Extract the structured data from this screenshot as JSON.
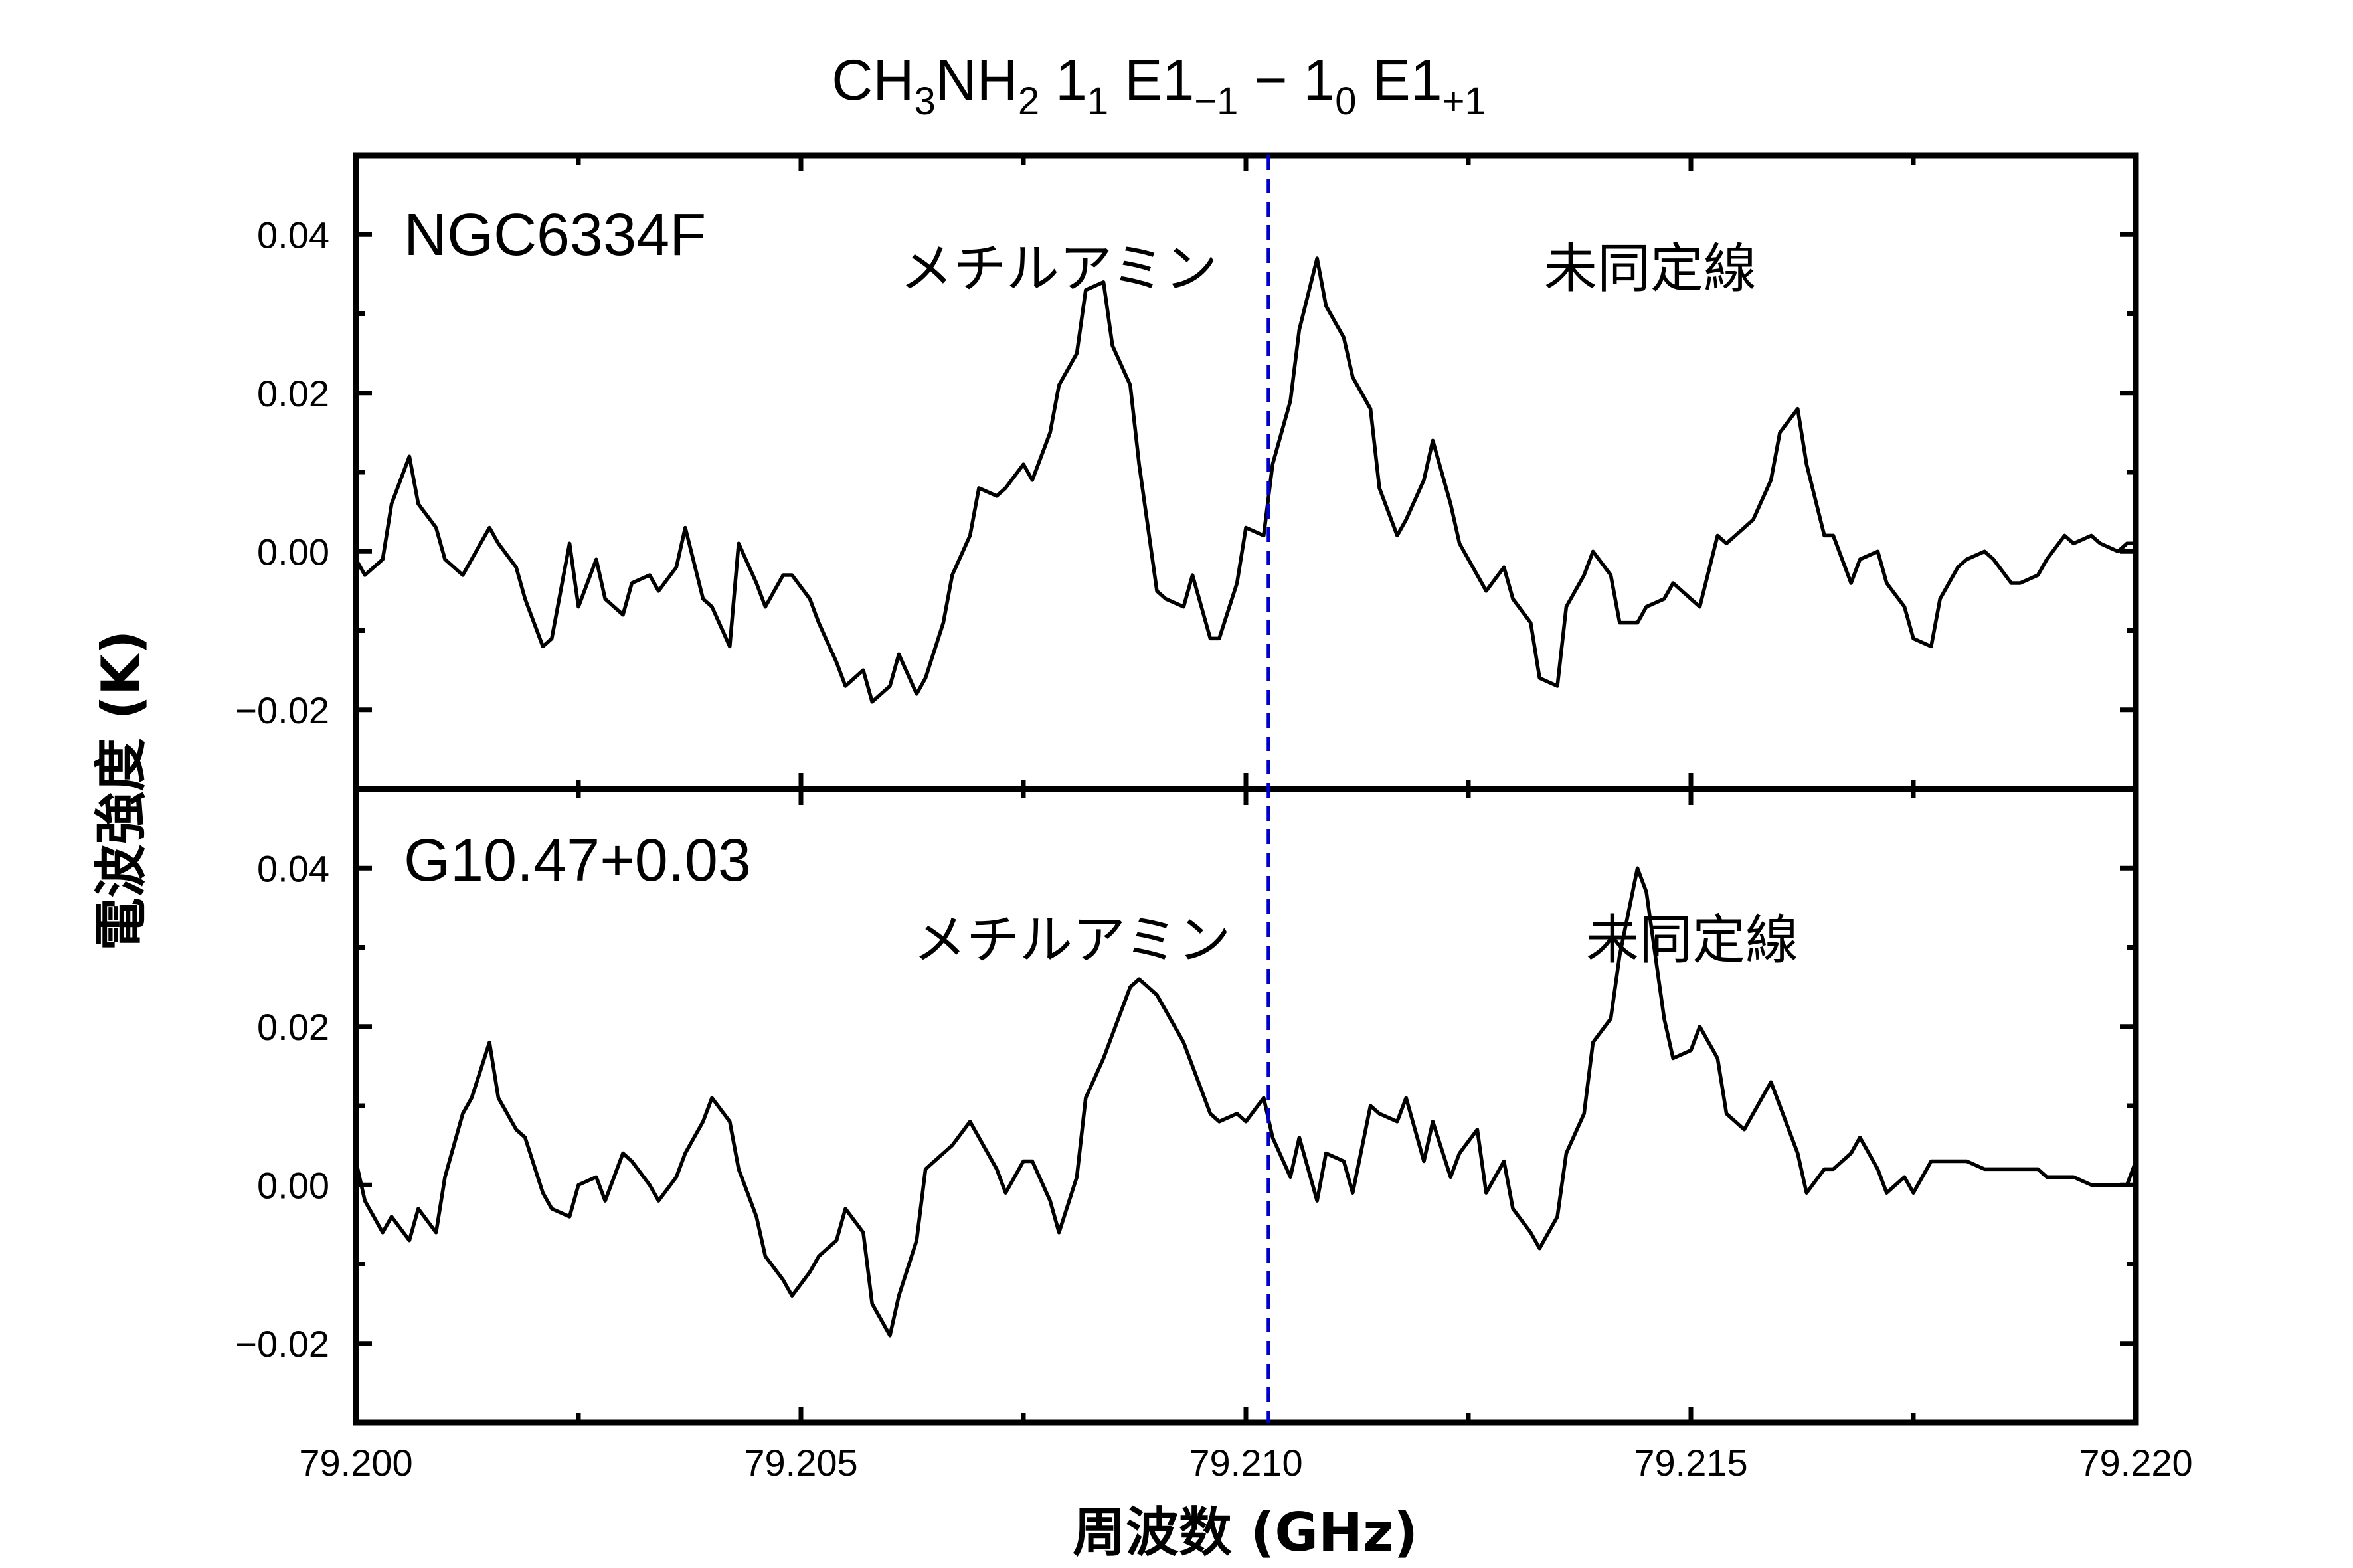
{
  "colors": {
    "marker": "#0000cc",
    "line": "#000000"
  },
  "chart_data": {
    "type": "line",
    "title": {
      "base": "CH",
      "s1": "3",
      "mid": "NH",
      "s2": "2",
      "sp1": " 1",
      "s3": "1",
      "sp2": " E1",
      "s4": "−1",
      "dash": " − 1",
      "s5": "0",
      "sp3": " E1",
      "s6": "+1"
    },
    "xlabel": "周波数 (GHz)",
    "ylabel": "電波強度 (K)",
    "xlim": [
      79.2,
      79.22
    ],
    "xticks": [
      "79.200",
      "79.205",
      "79.210",
      "79.215",
      "79.220"
    ],
    "marker_x": 79.21,
    "panels": [
      {
        "name": "NGC6334F",
        "ylim": [
          -0.03,
          0.05
        ],
        "yticks": [
          "0.04",
          "0.02",
          "0.00",
          "−0.02"
        ],
        "annotations": [
          "メチルアミン",
          "未同定線"
        ],
        "series": [
          {
            "x": [
              79.2,
              79.2001,
              79.2003,
              79.2004,
              79.2006,
              79.2007,
              79.2009,
              79.201,
              79.2012,
              79.2013,
              79.2015,
              79.2016,
              79.2018,
              79.2019,
              79.2021,
              79.2022,
              79.2024,
              79.2025,
              79.2027,
              79.2028,
              79.203,
              79.2031,
              79.2033,
              79.2034,
              79.2036,
              79.2037,
              79.2039,
              79.204,
              79.2042,
              79.2043,
              79.2045,
              79.2046,
              79.2048,
              79.2049,
              79.2051,
              79.2052,
              79.2054,
              79.2055,
              79.2057,
              79.2058,
              79.206,
              79.2061,
              79.2063,
              79.2064,
              79.2066,
              79.2067,
              79.2069,
              79.207,
              79.2072,
              79.2073,
              79.2075,
              79.2076,
              79.2078,
              79.2079,
              79.2081,
              79.2082,
              79.2084,
              79.2085,
              79.2087,
              79.2088,
              79.209,
              79.2091,
              79.2093,
              79.2094,
              79.2096,
              79.2097,
              79.2099,
              79.21,
              79.2102,
              79.2103,
              79.2105,
              79.2106,
              79.2108,
              79.2109,
              79.2111,
              79.2112,
              79.2114,
              79.2115,
              79.2117,
              79.2118,
              79.212,
              79.2121,
              79.2123,
              79.2124,
              79.2126,
              79.2127,
              79.2129,
              79.213,
              79.2132,
              79.2133,
              79.2135,
              79.2136,
              79.2138,
              79.2139,
              79.2141,
              79.2142,
              79.2144,
              79.2145,
              79.2147,
              79.2148,
              79.215,
              79.2151,
              79.2153,
              79.2154,
              79.2156,
              79.2157,
              79.2159,
              79.216,
              79.2162,
              79.2163,
              79.2165,
              79.2166,
              79.2168,
              79.2169,
              79.2171,
              79.2172,
              79.2174,
              79.2175,
              79.2177,
              79.2178,
              79.218,
              79.2181,
              79.2183,
              79.2184,
              79.2186,
              79.2187,
              79.2189,
              79.219,
              79.2192,
              79.2193,
              79.2195,
              79.2196,
              79.2198,
              79.2199,
              79.22
            ],
            "y": [
              -0.001,
              -0.003,
              -0.001,
              0.006,
              0.012,
              0.006,
              0.003,
              -0.001,
              -0.003,
              -0.001,
              0.003,
              0.001,
              -0.002,
              -0.006,
              -0.012,
              -0.011,
              0.001,
              -0.007,
              -0.001,
              -0.006,
              -0.008,
              -0.004,
              -0.003,
              -0.005,
              -0.002,
              0.003,
              -0.006,
              -0.007,
              -0.012,
              0.001,
              -0.004,
              -0.007,
              -0.003,
              -0.003,
              -0.006,
              -0.009,
              -0.014,
              -0.017,
              -0.015,
              -0.019,
              -0.017,
              -0.013,
              -0.018,
              -0.016,
              -0.009,
              -0.003,
              0.002,
              0.008,
              0.007,
              0.008,
              0.011,
              0.009,
              0.015,
              0.021,
              0.025,
              0.033,
              0.034,
              0.026,
              0.021,
              0.011,
              -0.005,
              -0.006,
              -0.007,
              -0.003,
              -0.011,
              -0.011,
              -0.004,
              0.003,
              0.002,
              0.011,
              0.019,
              0.028,
              0.037,
              0.031,
              0.027,
              0.022,
              0.018,
              0.008,
              0.002,
              0.004,
              0.009,
              0.014,
              0.006,
              0.001,
              -0.003,
              -0.005,
              -0.002,
              -0.006,
              -0.009,
              -0.016,
              -0.017,
              -0.007,
              -0.003,
              0.0,
              -0.003,
              -0.009,
              -0.009,
              -0.007,
              -0.006,
              -0.004,
              -0.006,
              -0.007,
              0.002,
              0.001,
              0.003,
              0.004,
              0.009,
              0.015,
              0.018,
              0.011,
              0.002,
              0.002,
              -0.004,
              -0.001,
              0.0,
              -0.004,
              -0.007,
              -0.011,
              -0.012,
              -0.006,
              -0.002,
              -0.001,
              0.0,
              -0.001,
              -0.004,
              -0.004,
              -0.003,
              -0.001,
              0.002,
              0.001,
              0.002,
              0.001,
              0.0,
              0.001,
              0.001
            ]
          }
        ]
      },
      {
        "name": "G10.47+0.03",
        "ylim": [
          -0.03,
          0.05
        ],
        "yticks": [
          "0.04",
          "0.02",
          "0.00",
          "−0.02"
        ],
        "annotations": [
          "メチルアミン",
          "未同定線"
        ],
        "series": [
          {
            "x": [
              79.2,
              79.2001,
              79.2003,
              79.2004,
              79.2006,
              79.2007,
              79.2009,
              79.201,
              79.2012,
              79.2013,
              79.2015,
              79.2016,
              79.2018,
              79.2019,
              79.2021,
              79.2022,
              79.2024,
              79.2025,
              79.2027,
              79.2028,
              79.203,
              79.2031,
              79.2033,
              79.2034,
              79.2036,
              79.2037,
              79.2039,
              79.204,
              79.2042,
              79.2043,
              79.2045,
              79.2046,
              79.2048,
              79.2049,
              79.2051,
              79.2052,
              79.2054,
              79.2055,
              79.2057,
              79.2058,
              79.206,
              79.2061,
              79.2063,
              79.2064,
              79.2066,
              79.2067,
              79.2069,
              79.207,
              79.2072,
              79.2073,
              79.2075,
              79.2076,
              79.2078,
              79.2079,
              79.2081,
              79.2082,
              79.2084,
              79.2085,
              79.2087,
              79.2088,
              79.209,
              79.2091,
              79.2093,
              79.2094,
              79.2096,
              79.2097,
              79.2099,
              79.21,
              79.2102,
              79.2103,
              79.2105,
              79.2106,
              79.2108,
              79.2109,
              79.2111,
              79.2112,
              79.2114,
              79.2115,
              79.2117,
              79.2118,
              79.212,
              79.2121,
              79.2123,
              79.2124,
              79.2126,
              79.2127,
              79.2129,
              79.213,
              79.2132,
              79.2133,
              79.2135,
              79.2136,
              79.2138,
              79.2139,
              79.2141,
              79.2142,
              79.2144,
              79.2145,
              79.2147,
              79.2148,
              79.215,
              79.2151,
              79.2153,
              79.2154,
              79.2156,
              79.2157,
              79.2159,
              79.216,
              79.2162,
              79.2163,
              79.2165,
              79.2166,
              79.2168,
              79.2169,
              79.2171,
              79.2172,
              79.2174,
              79.2175,
              79.2177,
              79.2178,
              79.218,
              79.2181,
              79.2183,
              79.2184,
              79.2186,
              79.2187,
              79.2189,
              79.219,
              79.2192,
              79.2193,
              79.2195,
              79.2196,
              79.2198,
              79.2199,
              79.22
            ],
            "y": [
              0.003,
              -0.002,
              -0.006,
              -0.004,
              -0.007,
              -0.003,
              -0.006,
              0.001,
              0.009,
              0.011,
              0.018,
              0.011,
              0.007,
              0.006,
              -0.001,
              -0.003,
              -0.004,
              0.0,
              0.001,
              -0.002,
              0.004,
              0.003,
              0.0,
              -0.002,
              0.001,
              0.004,
              0.008,
              0.011,
              0.008,
              0.002,
              -0.004,
              -0.009,
              -0.012,
              -0.014,
              -0.011,
              -0.009,
              -0.007,
              -0.003,
              -0.006,
              -0.015,
              -0.019,
              -0.014,
              -0.007,
              0.002,
              0.004,
              0.005,
              0.008,
              0.006,
              0.002,
              -0.001,
              0.003,
              0.003,
              -0.002,
              -0.006,
              0.001,
              0.011,
              0.016,
              0.019,
              0.025,
              0.026,
              0.024,
              0.022,
              0.018,
              0.015,
              0.009,
              0.008,
              0.009,
              0.008,
              0.011,
              0.006,
              0.001,
              0.006,
              -0.002,
              0.004,
              0.003,
              -0.001,
              0.01,
              0.009,
              0.008,
              0.011,
              0.003,
              0.008,
              0.001,
              0.004,
              0.007,
              -0.001,
              0.003,
              -0.003,
              -0.006,
              -0.008,
              -0.004,
              0.004,
              0.009,
              0.018,
              0.021,
              0.029,
              0.04,
              0.037,
              0.021,
              0.016,
              0.017,
              0.02,
              0.016,
              0.009,
              0.007,
              0.009,
              0.013,
              0.01,
              0.004,
              -0.001,
              0.002,
              0.002,
              0.004,
              0.006,
              0.002,
              -0.001,
              0.001,
              -0.001,
              0.003,
              0.003,
              0.003,
              0.003,
              0.002,
              0.002,
              0.002,
              0.002,
              0.002,
              0.001,
              0.001,
              0.001,
              0.0,
              0.0,
              0.0,
              0.0,
              0.003
            ]
          }
        ]
      }
    ]
  }
}
